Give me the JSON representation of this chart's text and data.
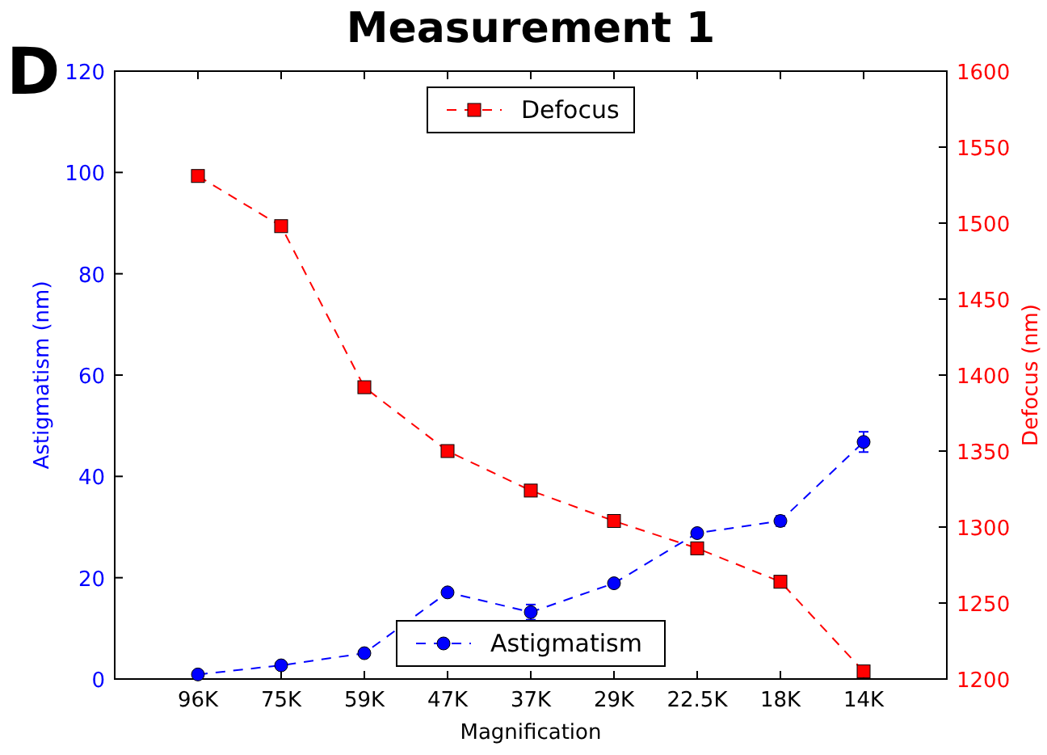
{
  "chart_data": {
    "type": "line",
    "title": "Measurement 1",
    "xlabel": "Magnification",
    "ylabel": "Astigmatism (nm)",
    "y2label": "Defocus (nm)",
    "annotations": [
      "D"
    ],
    "categories": [
      "96K",
      "75K",
      "59K",
      "47K",
      "37K",
      "29K",
      "22.5K",
      "18K",
      "14K"
    ],
    "series": [
      {
        "name": "Defocus",
        "color": "#ff0000",
        "axis": "y2",
        "marker": "square",
        "values": [
          1531,
          1498,
          1392,
          1350,
          1324,
          1304,
          1286,
          1264,
          1205
        ]
      },
      {
        "name": "Astigmatism",
        "color": "#0000ff",
        "marker": "circle",
        "values": [
          0.9,
          2.7,
          5.1,
          17.1,
          13.2,
          18.9,
          28.8,
          31.2,
          46.8
        ],
        "errors": [
          null,
          null,
          null,
          null,
          1.5,
          null,
          null,
          1,
          2
        ]
      }
    ],
    "line_style": "dashed",
    "grid": false,
    "legend": "center",
    "ylim": [
      0,
      120
    ],
    "yticks": [
      0,
      20,
      40,
      60,
      80,
      100,
      120
    ],
    "y2lim": [
      1200,
      1600
    ],
    "y2ticks": [
      1200,
      1250,
      1300,
      1350,
      1400,
      1450,
      1500,
      1550,
      1600
    ]
  }
}
